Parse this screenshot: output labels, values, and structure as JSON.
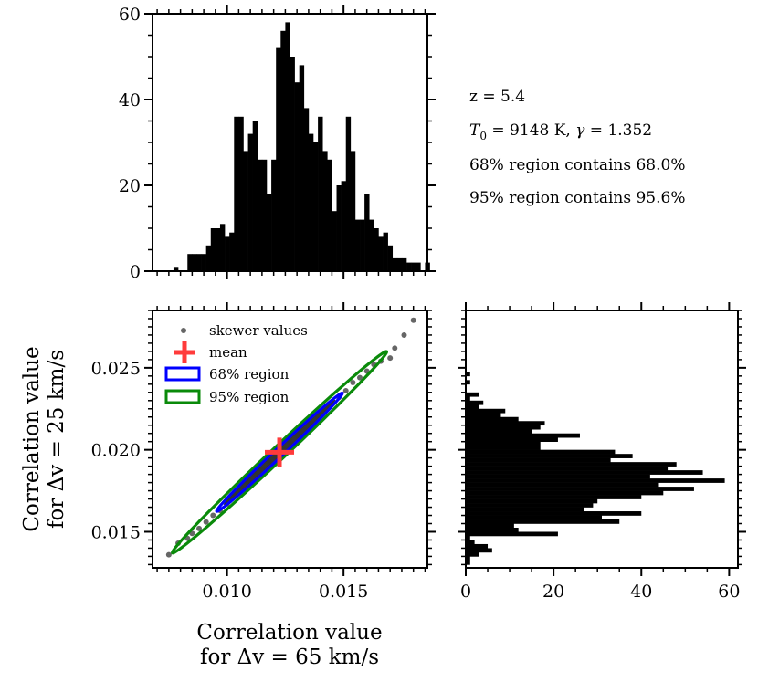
{
  "info": {
    "line1": "z = 5.4",
    "line2_var": "T",
    "line2_sub": "0",
    "line2_rest": " = 9148 K, ",
    "line2_gamma": "γ",
    "line2_end": " = 1.352",
    "line3": "68% region contains 68.0%",
    "line4": "95% region contains 95.6%"
  },
  "chart_data": [
    {
      "type": "bar",
      "panel": "top-histogram",
      "title": "",
      "xlabel": "",
      "ylabel": "",
      "xlim": [
        0.0068,
        0.0186
      ],
      "ylim": [
        0,
        60
      ],
      "y_ticks": [
        0,
        20,
        40,
        60
      ],
      "x_ticks": [
        0.01,
        0.015
      ],
      "bin_start": 0.0075,
      "bin_width": 0.0002,
      "values": [
        0,
        1,
        0,
        0,
        4,
        4,
        4,
        4,
        6,
        10,
        10,
        11,
        8,
        9,
        36,
        36,
        28,
        32,
        35,
        26,
        26,
        18,
        26,
        52,
        56,
        58,
        50,
        44,
        48,
        38,
        32,
        30,
        36,
        28,
        26,
        14,
        20,
        21,
        36,
        28,
        12,
        12,
        18,
        12,
        10,
        8,
        9,
        6,
        3,
        3,
        3,
        2,
        2,
        2,
        0,
        2,
        0
      ]
    },
    {
      "type": "scatter",
      "panel": "joint-distribution",
      "title": "",
      "xlabel": "Correlation value\nfor Δv = 65 km/s",
      "ylabel": "Correlation value\nfor Δv = 25 km/s",
      "xlim": [
        0.0068,
        0.0186
      ],
      "ylim": [
        0.0128,
        0.0285
      ],
      "x_ticks": [
        0.01,
        0.015
      ],
      "y_ticks": [
        0.015,
        0.02,
        0.025
      ],
      "legend_position": "top-left",
      "legend": {
        "points": "skewer values",
        "mean": "mean",
        "r68": "68% region",
        "r95": "95% region"
      },
      "mean": [
        0.01225,
        0.01985
      ],
      "slope": 1.33,
      "points": [
        [
          0.0075,
          0.0136
        ],
        [
          0.0079,
          0.0143
        ],
        [
          0.0083,
          0.0146
        ],
        [
          0.0085,
          0.0149
        ],
        [
          0.0088,
          0.0152
        ],
        [
          0.0091,
          0.0156
        ],
        [
          0.0094,
          0.016
        ],
        [
          0.0097,
          0.0163
        ],
        [
          0.01,
          0.0167
        ],
        [
          0.0103,
          0.0172
        ],
        [
          0.0106,
          0.0177
        ],
        [
          0.0109,
          0.0181
        ],
        [
          0.0112,
          0.0185
        ],
        [
          0.0115,
          0.0188
        ],
        [
          0.0118,
          0.0193
        ],
        [
          0.0121,
          0.0196
        ],
        [
          0.0124,
          0.0201
        ],
        [
          0.0127,
          0.0205
        ],
        [
          0.013,
          0.0209
        ],
        [
          0.0133,
          0.0212
        ],
        [
          0.0136,
          0.0216
        ],
        [
          0.0139,
          0.022
        ],
        [
          0.0142,
          0.0225
        ],
        [
          0.0145,
          0.0229
        ],
        [
          0.0148,
          0.0232
        ],
        [
          0.0151,
          0.0236
        ],
        [
          0.0154,
          0.0241
        ],
        [
          0.0157,
          0.0244
        ],
        [
          0.016,
          0.0248
        ],
        [
          0.0163,
          0.0252
        ],
        [
          0.0166,
          0.0254
        ],
        [
          0.017,
          0.0256
        ],
        [
          0.0172,
          0.0262
        ],
        [
          0.018,
          0.0279
        ],
        [
          0.0176,
          0.027
        ]
      ],
      "ellipse68": {
        "center": [
          0.01225,
          0.01985
        ],
        "x_extent": [
          0.0096,
          0.015
        ],
        "half_width": 0.00035
      },
      "ellipse95": {
        "center": [
          0.01225,
          0.01985
        ],
        "x_extent": [
          0.0076,
          0.0168
        ],
        "half_width": 0.00055
      },
      "colors": {
        "points": "#333333",
        "mean": "#ff3b3b",
        "r68": "#0000ff",
        "r95": "#0a8a0a"
      }
    },
    {
      "type": "bar",
      "orientation": "horizontal",
      "panel": "right-histogram",
      "title": "",
      "xlabel": "",
      "ylabel": "",
      "xlim": [
        0,
        62
      ],
      "x_ticks": [
        0,
        20,
        40,
        60
      ],
      "ylim": [
        0.0128,
        0.0285
      ],
      "bin_start": 0.013,
      "bin_width": 0.00025,
      "values": [
        1,
        1,
        3,
        6,
        5,
        2,
        1,
        21,
        12,
        11,
        35,
        31,
        40,
        27,
        29,
        30,
        40,
        45,
        52,
        44,
        59,
        42,
        54,
        46,
        48,
        33,
        38,
        34,
        17,
        17,
        21,
        26,
        15,
        17,
        18,
        12,
        8,
        9,
        3,
        4,
        1,
        3,
        0,
        0,
        1,
        0,
        1,
        0,
        0,
        0,
        0,
        0,
        0,
        0,
        0,
        0,
        0,
        0,
        0,
        0,
        0,
        0
      ]
    }
  ]
}
